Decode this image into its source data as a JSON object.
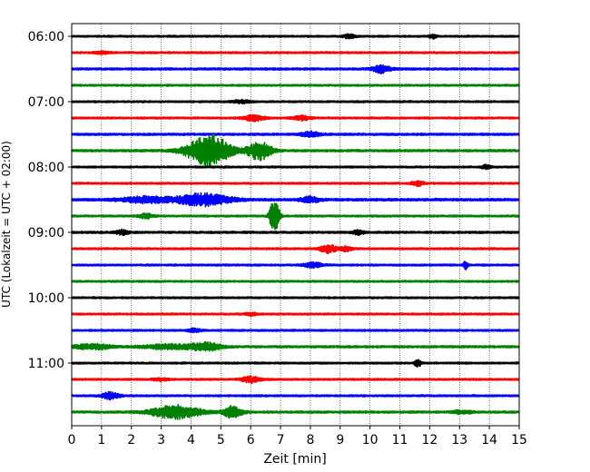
{
  "chart_data": {
    "type": "line",
    "title": "",
    "xlabel": "Zeit  [min]",
    "ylabel": "UTC (Lokalzeit = UTC + 02:00)",
    "xlim": [
      0,
      15
    ],
    "x_ticks": [
      0,
      1,
      2,
      3,
      4,
      5,
      6,
      7,
      8,
      9,
      10,
      11,
      12,
      13,
      14,
      15
    ],
    "x_grid": true,
    "y_ticks": [
      "06:00",
      "07:00",
      "08:00",
      "09:00",
      "10:00",
      "11:00"
    ],
    "trace_interval_min": 15,
    "trace_start": "06:00",
    "trace_count": 24,
    "color_cycle": [
      "#000000",
      "#ff0000",
      "#0000ff",
      "#008000"
    ],
    "series": [
      {
        "name": "06:00",
        "color": "#000000",
        "base_amplitude": 0.12,
        "events": [
          {
            "t": 9.3,
            "amp": 0.25,
            "dur": 0.2
          },
          {
            "t": 12.1,
            "amp": 0.25,
            "dur": 0.12
          }
        ]
      },
      {
        "name": "06:15",
        "color": "#ff0000",
        "base_amplitude": 0.12,
        "events": [
          {
            "t": 1.0,
            "amp": 0.18,
            "dur": 0.25
          }
        ]
      },
      {
        "name": "06:30",
        "color": "#0000ff",
        "base_amplitude": 0.14,
        "events": [
          {
            "t": 10.4,
            "amp": 0.5,
            "dur": 0.3
          }
        ]
      },
      {
        "name": "06:45",
        "color": "#008000",
        "base_amplitude": 0.12,
        "events": []
      },
      {
        "name": "07:00",
        "color": "#000000",
        "base_amplitude": 0.12,
        "events": [
          {
            "t": 5.7,
            "amp": 0.2,
            "dur": 0.3
          }
        ]
      },
      {
        "name": "07:15",
        "color": "#ff0000",
        "base_amplitude": 0.12,
        "events": [
          {
            "t": 6.1,
            "amp": 0.4,
            "dur": 0.35
          },
          {
            "t": 7.7,
            "amp": 0.3,
            "dur": 0.3
          }
        ]
      },
      {
        "name": "07:30",
        "color": "#0000ff",
        "base_amplitude": 0.14,
        "events": [
          {
            "t": 8.0,
            "amp": 0.35,
            "dur": 0.3
          }
        ]
      },
      {
        "name": "07:45",
        "color": "#008000",
        "base_amplitude": 0.14,
        "events": [
          {
            "t": 4.6,
            "amp": 2.2,
            "dur": 0.7
          },
          {
            "t": 6.3,
            "amp": 1.2,
            "dur": 0.4
          }
        ]
      },
      {
        "name": "08:00",
        "color": "#000000",
        "base_amplitude": 0.12,
        "events": [
          {
            "t": 13.9,
            "amp": 0.25,
            "dur": 0.15
          }
        ]
      },
      {
        "name": "08:15",
        "color": "#ff0000",
        "base_amplitude": 0.12,
        "events": [
          {
            "t": 11.6,
            "amp": 0.3,
            "dur": 0.2
          }
        ]
      },
      {
        "name": "08:30",
        "color": "#0000ff",
        "base_amplitude": 0.16,
        "events": [
          {
            "t": 2.5,
            "amp": 0.4,
            "dur": 0.8
          },
          {
            "t": 4.4,
            "amp": 0.8,
            "dur": 0.9
          },
          {
            "t": 8.0,
            "amp": 0.4,
            "dur": 0.3
          }
        ]
      },
      {
        "name": "08:45",
        "color": "#008000",
        "base_amplitude": 0.12,
        "events": [
          {
            "t": 2.5,
            "amp": 0.3,
            "dur": 0.25
          },
          {
            "t": 6.8,
            "amp": 2.5,
            "dur": 0.15
          }
        ]
      },
      {
        "name": "09:00",
        "color": "#000000",
        "base_amplitude": 0.14,
        "events": [
          {
            "t": 1.7,
            "amp": 0.3,
            "dur": 0.2
          },
          {
            "t": 9.6,
            "amp": 0.25,
            "dur": 0.2
          }
        ]
      },
      {
        "name": "09:15",
        "color": "#ff0000",
        "base_amplitude": 0.12,
        "events": [
          {
            "t": 8.6,
            "amp": 0.6,
            "dur": 0.25
          },
          {
            "t": 9.2,
            "amp": 0.3,
            "dur": 0.2
          }
        ]
      },
      {
        "name": "09:30",
        "color": "#0000ff",
        "base_amplitude": 0.12,
        "events": [
          {
            "t": 8.1,
            "amp": 0.35,
            "dur": 0.3
          },
          {
            "t": 13.2,
            "amp": 0.5,
            "dur": 0.08
          }
        ]
      },
      {
        "name": "09:45",
        "color": "#008000",
        "base_amplitude": 0.12,
        "events": []
      },
      {
        "name": "10:00",
        "color": "#000000",
        "base_amplitude": 0.12,
        "events": []
      },
      {
        "name": "10:15",
        "color": "#ff0000",
        "base_amplitude": 0.12,
        "events": [
          {
            "t": 6.0,
            "amp": 0.2,
            "dur": 0.2
          }
        ]
      },
      {
        "name": "10:30",
        "color": "#0000ff",
        "base_amplitude": 0.12,
        "events": [
          {
            "t": 4.1,
            "amp": 0.25,
            "dur": 0.2
          }
        ]
      },
      {
        "name": "10:45",
        "color": "#008000",
        "base_amplitude": 0.14,
        "events": [
          {
            "t": 0.7,
            "amp": 0.35,
            "dur": 0.6
          },
          {
            "t": 3.3,
            "amp": 0.3,
            "dur": 0.9
          },
          {
            "t": 4.5,
            "amp": 0.5,
            "dur": 0.5
          }
        ]
      },
      {
        "name": "11:00",
        "color": "#000000",
        "base_amplitude": 0.12,
        "events": [
          {
            "t": 11.6,
            "amp": 0.6,
            "dur": 0.1
          }
        ]
      },
      {
        "name": "11:15",
        "color": "#ff0000",
        "base_amplitude": 0.12,
        "events": [
          {
            "t": 6.0,
            "amp": 0.4,
            "dur": 0.3
          },
          {
            "t": 3.0,
            "amp": 0.15,
            "dur": 0.3
          }
        ]
      },
      {
        "name": "11:30",
        "color": "#0000ff",
        "base_amplitude": 0.12,
        "events": [
          {
            "t": 1.3,
            "amp": 0.45,
            "dur": 0.3
          }
        ]
      },
      {
        "name": "11:45",
        "color": "#008000",
        "base_amplitude": 0.14,
        "events": [
          {
            "t": 3.5,
            "amp": 0.9,
            "dur": 0.8
          },
          {
            "t": 5.4,
            "amp": 0.8,
            "dur": 0.3
          },
          {
            "t": 13.1,
            "amp": 0.2,
            "dur": 0.3
          }
        ]
      }
    ]
  }
}
